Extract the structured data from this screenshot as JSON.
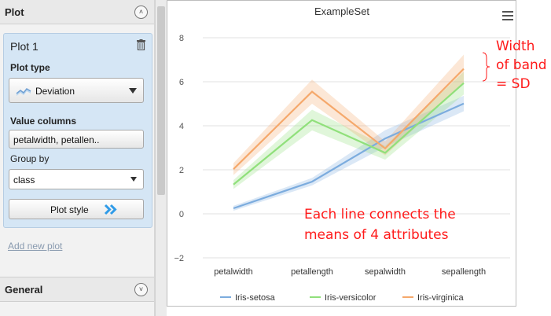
{
  "plot_section": {
    "title": "Plot",
    "collapse_glyph": "˄"
  },
  "plot_card": {
    "title": "Plot 1",
    "plot_type_label": "Plot type",
    "plot_type_value": "Deviation",
    "value_columns_label": "Value columns",
    "value_columns_value": "petalwidth, petallen..",
    "group_by_label": "Group by",
    "group_by_value": "class",
    "plot_style_label": "Plot style"
  },
  "add_new_plot": "Add new plot",
  "general_section": {
    "title": "General",
    "expand_glyph": "˅"
  },
  "colors": {
    "setosa": "#7cacde",
    "versicolor": "#90e07b",
    "virginica": "#f5a86b",
    "accent": "#ff1a1a"
  },
  "chart_data": {
    "type": "line",
    "title": "ExampleSet",
    "categories": [
      "petalwidth",
      "petallength",
      "sepalwidth",
      "sepallength"
    ],
    "ylim": [
      -2,
      8
    ],
    "yticks": [
      -2,
      0,
      2,
      4,
      6,
      8
    ],
    "grid": "horizontal",
    "legend": "bottom",
    "series": [
      {
        "name": "Iris-setosa",
        "values": [
          0.25,
          1.46,
          3.42,
          5.01
        ],
        "sd": [
          0.11,
          0.17,
          0.38,
          0.35
        ],
        "color": "#7cacde"
      },
      {
        "name": "Iris-versicolor",
        "values": [
          1.33,
          4.26,
          2.77,
          5.94
        ],
        "sd": [
          0.2,
          0.47,
          0.31,
          0.52
        ],
        "color": "#90e07b"
      },
      {
        "name": "Iris-virginica",
        "values": [
          2.03,
          5.55,
          2.97,
          6.59
        ],
        "sd": [
          0.27,
          0.55,
          0.32,
          0.64
        ],
        "color": "#f5a86b"
      }
    ]
  },
  "annotations": {
    "band_line1": "Width",
    "band_line2": "of band",
    "band_line3": "= SD",
    "lines_line1": "Each line connects the",
    "lines_line2": "means of 4 attributes"
  }
}
